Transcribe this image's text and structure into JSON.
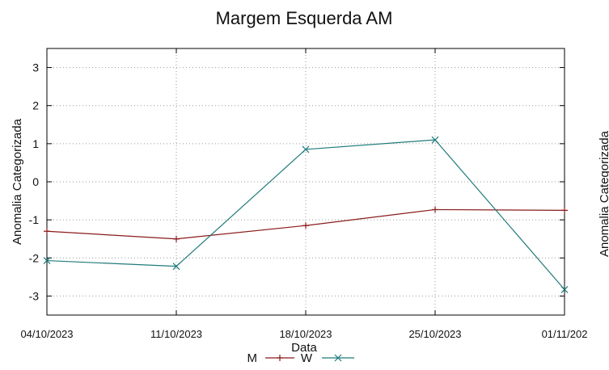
{
  "chart_data": {
    "type": "line",
    "title": "Margem Esquerda AM",
    "xlabel": "Data",
    "ylabel": "Anomalia Categorizada",
    "right_ylabel_partial": "Anomalia Categorizada",
    "categories": [
      "04/10/2023",
      "11/10/2023",
      "18/10/2023",
      "25/10/2023",
      "01/11/202"
    ],
    "ylim": [
      -3.5,
      3.5
    ],
    "yticks": [
      3,
      2,
      1,
      0,
      -1,
      -2,
      -3
    ],
    "yticklabels": [
      "3",
      "2",
      "1",
      "0",
      "-1",
      "-2",
      "-3"
    ],
    "grid": true,
    "legend_placement": "bottom",
    "series": [
      {
        "name": "M",
        "color": "#8b1a1a",
        "marker": "plus",
        "values": [
          -1.3,
          -1.5,
          -1.15,
          -0.73,
          -0.75
        ]
      },
      {
        "name": "W",
        "color": "#1f7a7a",
        "marker": "cross",
        "values": [
          -2.07,
          -2.22,
          0.85,
          1.1,
          -2.83
        ]
      }
    ]
  }
}
